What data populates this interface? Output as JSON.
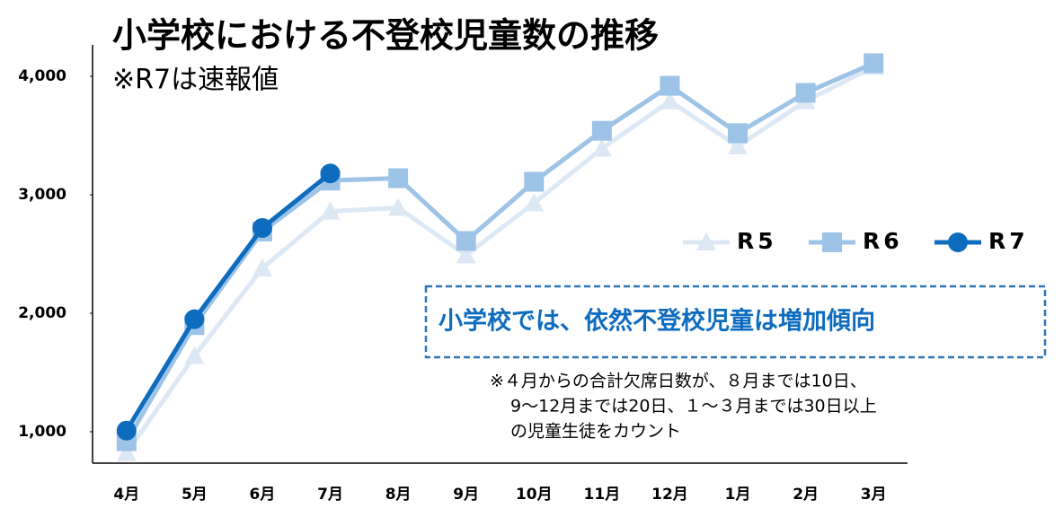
{
  "chart_data": {
    "type": "line",
    "title": "小学校における不登校児童数の推移",
    "subtitle": "※R7は速報値",
    "annotation": "小学校では、依然不登校児童は増加傾向",
    "note": [
      "※４月からの合計欠席日数が、８月までは10日、",
      "9～12月までは20日、１～３月までは30日以上",
      "の児童生徒をカウント"
    ],
    "categories": [
      "4月",
      "5月",
      "6月",
      "7月",
      "8月",
      "9月",
      "10月",
      "11月",
      "12月",
      "1月",
      "2月",
      "3月"
    ],
    "series": [
      {
        "name": "R5",
        "color": "#dde8f5",
        "marker": "triangle",
        "values": [
          820,
          1640,
          2380,
          2860,
          2890,
          2490,
          2930,
          3390,
          3790,
          3410,
          3790,
          4080
        ]
      },
      {
        "name": "R6",
        "color": "#9dc3e6",
        "marker": "square",
        "values": [
          920,
          1900,
          2690,
          3120,
          3140,
          2610,
          3110,
          3540,
          3920,
          3520,
          3860,
          4110
        ]
      },
      {
        "name": "R7",
        "color": "#0e6cbf",
        "marker": "circle",
        "values": [
          1010,
          1950,
          2720,
          3180,
          null,
          null,
          null,
          null,
          null,
          null,
          null,
          null
        ]
      }
    ],
    "ylim": [
      735,
      4265
    ],
    "yticks": [
      {
        "value": 1000,
        "label": "1,000"
      },
      {
        "value": 2000,
        "label": "2,000"
      },
      {
        "value": 3000,
        "label": "3,000"
      },
      {
        "value": 4000,
        "label": "4,000"
      }
    ]
  }
}
